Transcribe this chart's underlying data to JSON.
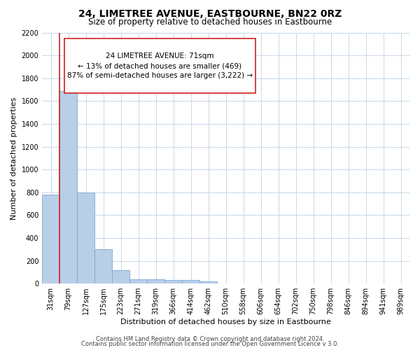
{
  "title": "24, LIMETREE AVENUE, EASTBOURNE, BN22 0RZ",
  "subtitle": "Size of property relative to detached houses in Eastbourne",
  "xlabel": "Distribution of detached houses by size in Eastbourne",
  "ylabel": "Number of detached properties",
  "bar_labels": [
    "31sqm",
    "79sqm",
    "127sqm",
    "175sqm",
    "223sqm",
    "271sqm",
    "319sqm",
    "366sqm",
    "414sqm",
    "462sqm",
    "510sqm",
    "558sqm",
    "606sqm",
    "654sqm",
    "702sqm",
    "750sqm",
    "798sqm",
    "846sqm",
    "894sqm",
    "941sqm",
    "989sqm"
  ],
  "bar_values": [
    780,
    1690,
    800,
    300,
    115,
    40,
    38,
    35,
    30,
    18,
    0,
    0,
    0,
    0,
    0,
    0,
    0,
    0,
    0,
    0,
    0
  ],
  "bar_color": "#b8cfe8",
  "bar_edge_color": "#7aa8d4",
  "property_line_color": "#cc2222",
  "property_line_x": 0.5,
  "annotation_text_line1": "24 LIMETREE AVENUE: 71sqm",
  "annotation_text_line2": "← 13% of detached houses are smaller (469)",
  "annotation_text_line3": "87% of semi-detached houses are larger (3,222) →",
  "ylim": [
    0,
    2200
  ],
  "yticks": [
    0,
    200,
    400,
    600,
    800,
    1000,
    1200,
    1400,
    1600,
    1800,
    2000,
    2200
  ],
  "footer_line1": "Contains HM Land Registry data © Crown copyright and database right 2024.",
  "footer_line2": "Contains public sector information licensed under the Open Government Licence v 3.0.",
  "bg_color": "#ffffff",
  "grid_color": "#c8d8e8",
  "title_fontsize": 10,
  "subtitle_fontsize": 8.5,
  "axis_label_fontsize": 8,
  "tick_fontsize": 7,
  "annotation_fontsize": 7.5,
  "footer_fontsize": 6
}
